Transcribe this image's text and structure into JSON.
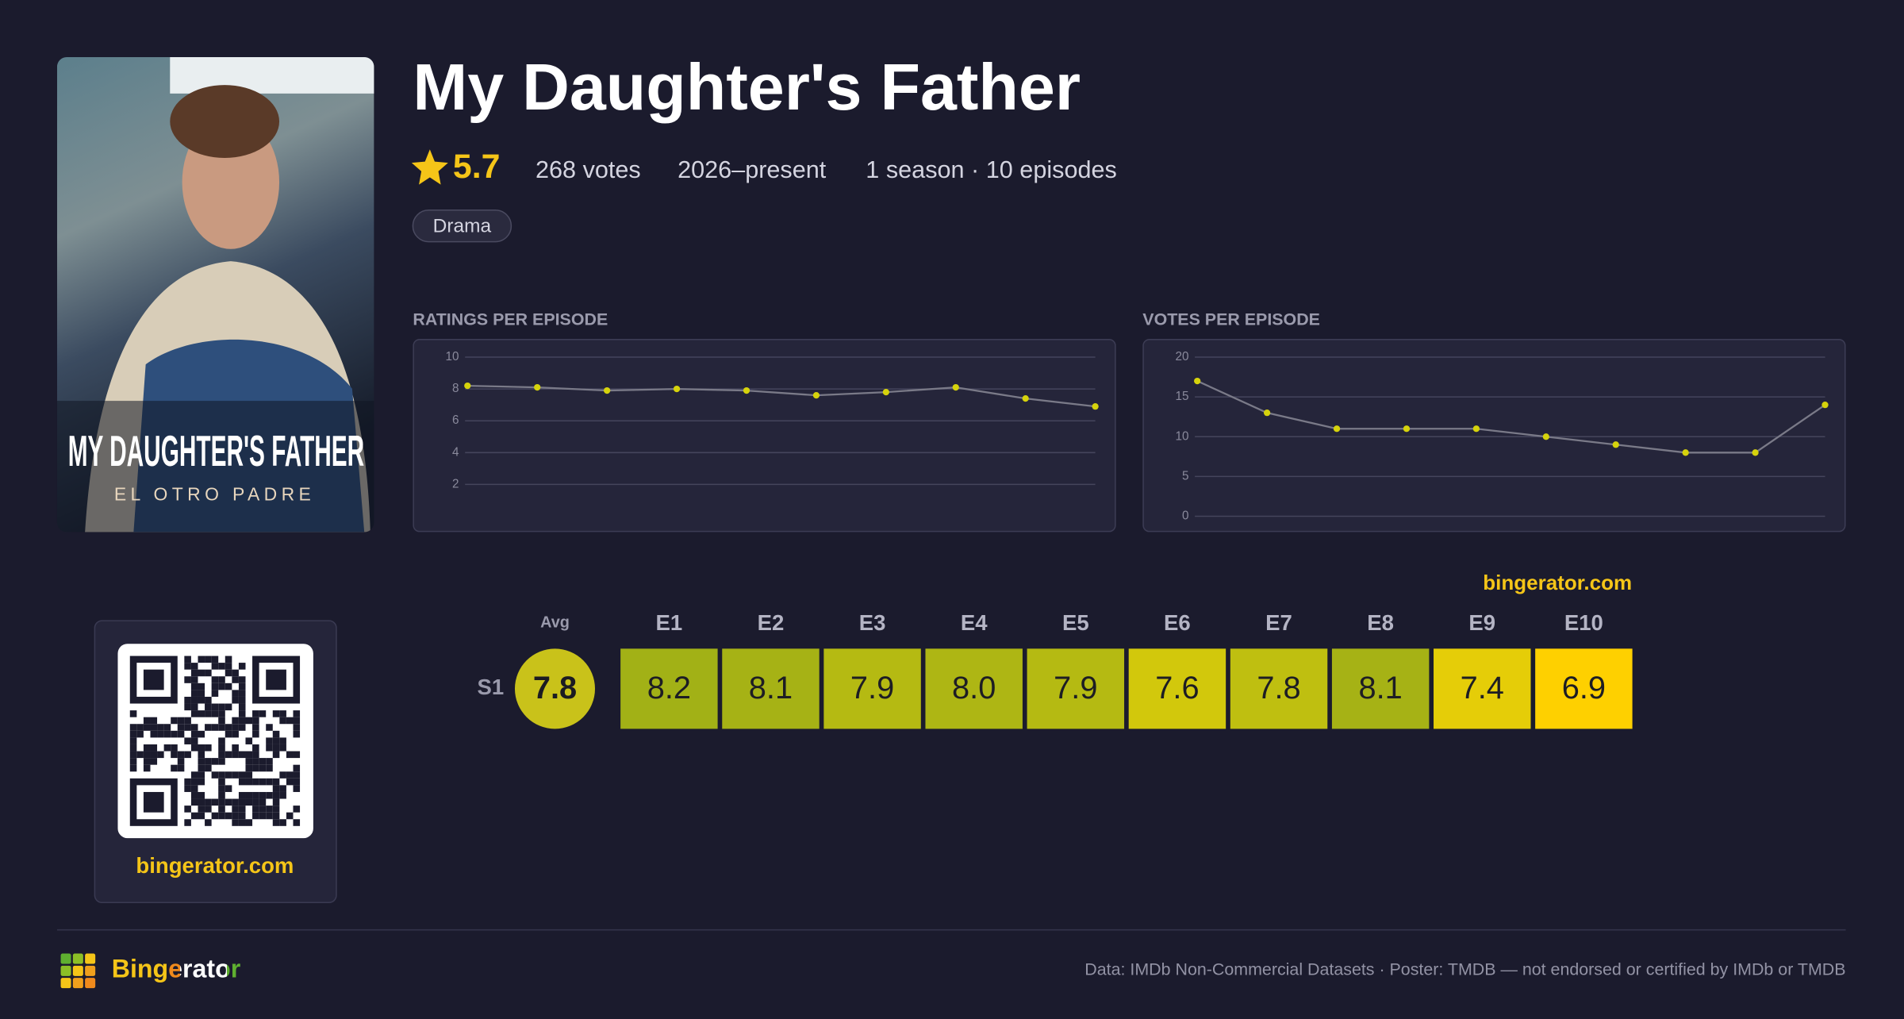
{
  "poster": {
    "title": "MY DAUGHTER'S FATHER",
    "subtitle": "EL OTRO PADRE"
  },
  "header": {
    "title": "My Daughter's Father",
    "rating": 5.7,
    "votes": "268 votes",
    "years": "2026–present",
    "seasons": "1 season · 10 episodes",
    "genres": [
      "Drama"
    ]
  },
  "chart_data": [
    {
      "type": "line",
      "title": "RATINGS PER EPISODE",
      "values": [
        8.2,
        8.1,
        7.9,
        8.0,
        7.9,
        7.6,
        7.8,
        8.1,
        7.4,
        6.9
      ],
      "ylim": [
        0,
        10
      ],
      "yticks": [
        2,
        4,
        6,
        8,
        10
      ],
      "grid": true,
      "color": "#d6d30c"
    },
    {
      "type": "line",
      "title": "VOTES PER EPISODE",
      "values": [
        17,
        13,
        11,
        11,
        11,
        10,
        9,
        8,
        8,
        14
      ],
      "ylim": [
        0,
        20
      ],
      "yticks": [
        0,
        5,
        10,
        15,
        20
      ],
      "grid": true,
      "color": "#d6d30c"
    }
  ],
  "heatmap": {
    "watermark": "bingerator.com",
    "avg_label": "Avg",
    "avg": 7.8,
    "avg_color": "#c9c21a",
    "episodes": [
      "E1",
      "E2",
      "E3",
      "E4",
      "E5",
      "E6",
      "E7",
      "E8",
      "E9",
      "E10"
    ],
    "seasons": [
      {
        "label": "S1",
        "values": [
          8.2,
          8.1,
          7.9,
          8.0,
          7.9,
          7.6,
          7.8,
          8.1,
          7.4,
          6.9
        ],
        "value_labels": [
          "8.2",
          "8.1",
          "7.9",
          "8.0",
          "7.9",
          "7.6",
          "7.8",
          "8.1",
          "7.4",
          "6.9"
        ],
        "colors": [
          "#a2b116",
          "#a6b215",
          "#b5ba12",
          "#aeb614",
          "#b5ba12",
          "#d2c80c",
          "#bfbf10",
          "#a6b215",
          "#e5cd08",
          "#fed000"
        ]
      }
    ]
  },
  "qr": {
    "caption": "bingerator.com"
  },
  "footer": {
    "brand": "Bingerator",
    "credits": "Data: IMDb Non-Commercial Datasets · Poster: TMDB — not endorsed or certified by IMDb or TMDB"
  }
}
